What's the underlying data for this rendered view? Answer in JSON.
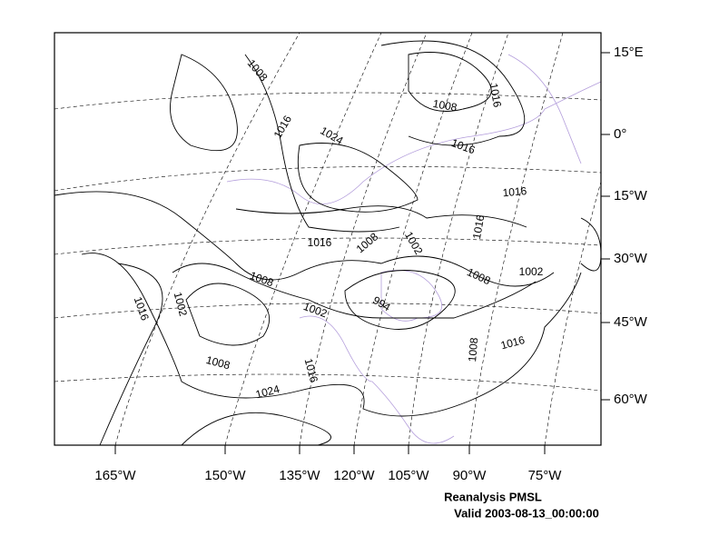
{
  "map": {
    "lon_labels": [
      "165°W",
      "150°W",
      "135°W",
      "120°W",
      "105°W",
      "90°W",
      "75°W"
    ],
    "lat_labels": [
      "15°E",
      "0°",
      "15°W",
      "30°W",
      "45°W",
      "60°W"
    ],
    "contour_labels": [
      "1008",
      "1016",
      "1024",
      "1008",
      "1016",
      "1016",
      "1016",
      "1016",
      "1008",
      "1002",
      "1016",
      "1008",
      "1008",
      "1002",
      "1016",
      "1002",
      "1002",
      "994",
      "1008",
      "1016",
      "1008",
      "1016",
      "1024"
    ],
    "caption": [
      "Reanalysis PMSL",
      "Valid 2003-08-13_00:00:00"
    ]
  }
}
